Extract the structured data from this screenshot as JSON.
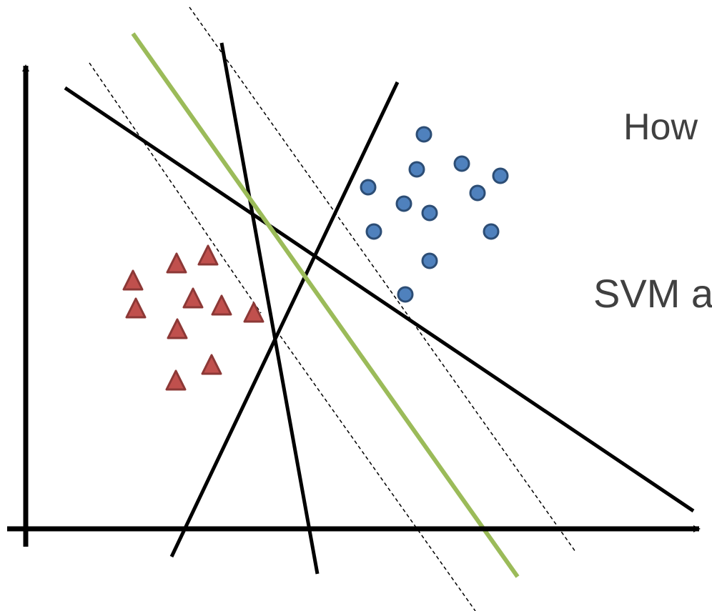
{
  "text_lines": [
    {
      "text": "How"
    },
    {
      "text": "."
    },
    {
      "text": "SVM a"
    }
  ],
  "colors": {
    "axis": "#000000",
    "separator": "#000000",
    "svm_line": "#9bbb59",
    "margin": "#000000",
    "circle_fill": "#4f81bd",
    "circle_stroke": "#2c4d75",
    "triangle_fill": "#c0504d",
    "triangle_stroke": "#8c3836",
    "text": "#404040"
  },
  "icons": {
    "class_a_marker": "triangle-icon",
    "class_b_marker": "circle-icon"
  }
}
